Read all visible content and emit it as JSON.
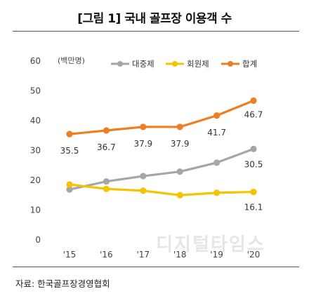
{
  "title": "[그림 1] 국내 골프장 이용객 수",
  "source": "자료: 한국골프장경영협회",
  "watermark": "디지털타임스",
  "chart_data": {
    "type": "line",
    "unit_label": "(백만명)",
    "categories": [
      "'15",
      "'16",
      "'17",
      "'18",
      "'19",
      "'20"
    ],
    "ylim": [
      0,
      60
    ],
    "yticks": [
      0,
      10,
      20,
      30,
      40,
      50,
      60
    ],
    "grid": false,
    "legend_position": "top-right",
    "series": [
      {
        "name": "대중제",
        "color": "#a6a6a6",
        "values": [
          16.9,
          19.6,
          21.4,
          22.9,
          25.9,
          30.5
        ],
        "labels": [
          "",
          "",
          "",
          "",
          "",
          "30.5"
        ]
      },
      {
        "name": "회원제",
        "color": "#f5c400",
        "values": [
          18.6,
          17.1,
          16.5,
          15.0,
          15.8,
          16.1
        ],
        "labels": [
          "",
          "",
          "",
          "",
          "",
          "16.1"
        ]
      },
      {
        "name": "합계",
        "color": "#ef7d22",
        "values": [
          35.5,
          36.7,
          37.9,
          37.9,
          41.7,
          46.7
        ],
        "labels": [
          "35.5",
          "36.7",
          "37.9",
          "37.9",
          "41.7",
          "46.7"
        ]
      }
    ]
  }
}
